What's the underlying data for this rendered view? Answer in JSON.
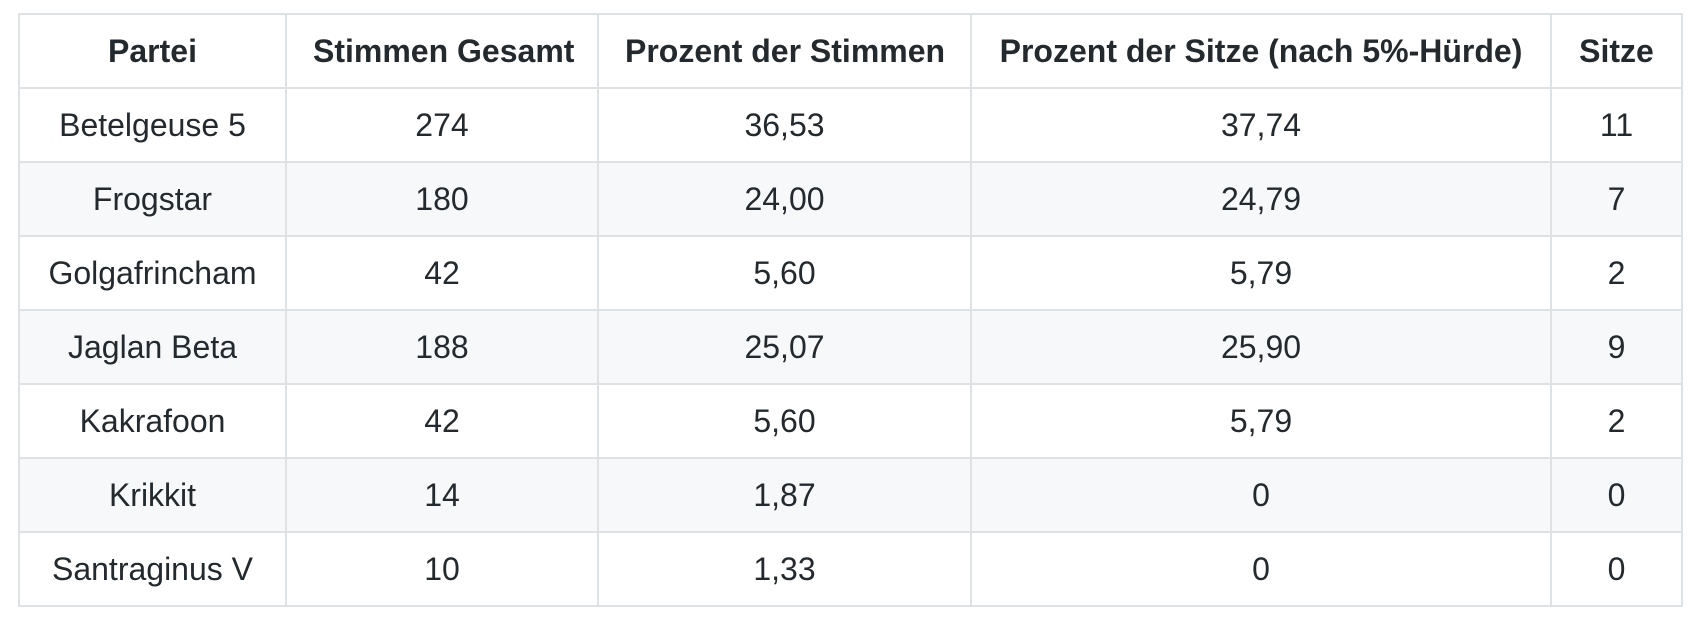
{
  "chart_data": {
    "type": "table",
    "title": "",
    "columns": [
      {
        "label": "Partei"
      },
      {
        "label": "Stimmen Gesamt"
      },
      {
        "label": "Prozent der Stimmen"
      },
      {
        "label": "Prozent der Sitze (nach 5%-Hürde)"
      },
      {
        "label": "Sitze"
      }
    ],
    "rows": [
      [
        "Betelgeuse 5",
        "274",
        "36,53",
        "37,74",
        "11"
      ],
      [
        "Frogstar",
        "180",
        "24,00",
        "24,79",
        "7"
      ],
      [
        "Golgafrincham",
        "42",
        "5,60",
        "5,79",
        "2"
      ],
      [
        "Jaglan Beta",
        "188",
        "25,07",
        "25,90",
        "9"
      ],
      [
        "Kakrafoon",
        "42",
        "5,60",
        "5,79",
        "2"
      ],
      [
        "Krikkit",
        "14",
        "1,87",
        "0",
        "0"
      ],
      [
        "Santraginus V",
        "10",
        "1,33",
        "0",
        "0"
      ]
    ],
    "colors": {
      "text": "#24292e",
      "border": "#dfe2e5",
      "stripe_row_background": "#f6f8fa",
      "background": "#ffffff"
    }
  }
}
